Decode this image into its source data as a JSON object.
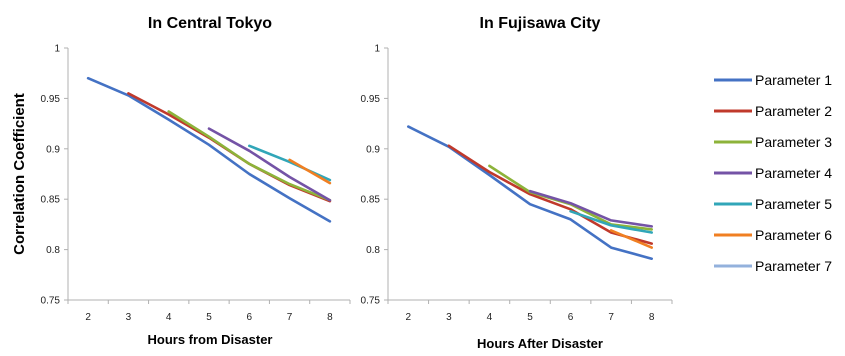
{
  "ylabel": "Correlation Coefficient",
  "legend": [
    {
      "name": "Parameter 1",
      "color": "#4472c4"
    },
    {
      "name": "Parameter 2",
      "color": "#c0392b"
    },
    {
      "name": "Parameter 3",
      "color": "#8db33a"
    },
    {
      "name": "Parameter 4",
      "color": "#7453a6"
    },
    {
      "name": "Parameter 5",
      "color": "#31a6b8"
    },
    {
      "name": "Parameter 6",
      "color": "#f07f22"
    },
    {
      "name": "Parameter 7",
      "color": "#93b1dc"
    }
  ],
  "chart_data": [
    {
      "type": "line",
      "title": "In Central Tokyo",
      "xlabel": "Hours from Disaster",
      "ylabel": "Correlation Coefficient",
      "x": [
        2,
        3,
        4,
        5,
        6,
        7,
        8
      ],
      "ylim": [
        0.75,
        1
      ],
      "yticks": [
        "0.75",
        "0.8",
        "0.85",
        "0.9",
        "0.95",
        "1"
      ],
      "grid": false,
      "legend_position": "right",
      "series": [
        {
          "name": "Parameter 1",
          "values": [
            0.97,
            0.953,
            0.929,
            0.904,
            0.875,
            0.851,
            0.828
          ]
        },
        {
          "name": "Parameter 2",
          "values": [
            null,
            0.955,
            0.934,
            0.911,
            0.885,
            0.864,
            0.848
          ]
        },
        {
          "name": "Parameter 3",
          "values": [
            null,
            null,
            0.937,
            0.912,
            0.885,
            0.865,
            0.849
          ]
        },
        {
          "name": "Parameter 4",
          "values": [
            null,
            null,
            null,
            0.92,
            0.898,
            0.872,
            0.849
          ]
        },
        {
          "name": "Parameter 5",
          "values": [
            null,
            null,
            null,
            null,
            0.903,
            0.887,
            0.869
          ]
        },
        {
          "name": "Parameter 6",
          "values": [
            null,
            null,
            null,
            null,
            null,
            0.889,
            0.866
          ]
        },
        {
          "name": "Parameter 7",
          "values": [
            null,
            null,
            null,
            null,
            null,
            null,
            0.868
          ]
        }
      ]
    },
    {
      "type": "line",
      "title": "In Fujisawa City",
      "xlabel": "Hours After Disaster",
      "ylabel": "",
      "x": [
        2,
        3,
        4,
        5,
        6,
        7,
        8
      ],
      "ylim": [
        0.75,
        1
      ],
      "yticks": [
        "0.75",
        "0.8",
        "0.85",
        "0.9",
        "0.95",
        "1"
      ],
      "grid": false,
      "series": [
        {
          "name": "Parameter 1",
          "values": [
            0.922,
            0.902,
            0.874,
            0.845,
            0.83,
            0.802,
            0.791
          ]
        },
        {
          "name": "Parameter 2",
          "values": [
            null,
            0.903,
            0.877,
            0.855,
            0.84,
            0.817,
            0.806
          ]
        },
        {
          "name": "Parameter 3",
          "values": [
            null,
            null,
            0.883,
            0.857,
            0.845,
            0.825,
            0.82
          ]
        },
        {
          "name": "Parameter 4",
          "values": [
            null,
            null,
            null,
            0.858,
            0.846,
            0.829,
            0.823
          ]
        },
        {
          "name": "Parameter 5",
          "values": [
            null,
            null,
            null,
            null,
            0.838,
            0.824,
            0.817
          ]
        },
        {
          "name": "Parameter 6",
          "values": [
            null,
            null,
            null,
            null,
            null,
            0.819,
            0.802
          ]
        },
        {
          "name": "Parameter 7",
          "values": [
            null,
            null,
            null,
            null,
            null,
            null,
            0.815
          ]
        }
      ]
    }
  ]
}
